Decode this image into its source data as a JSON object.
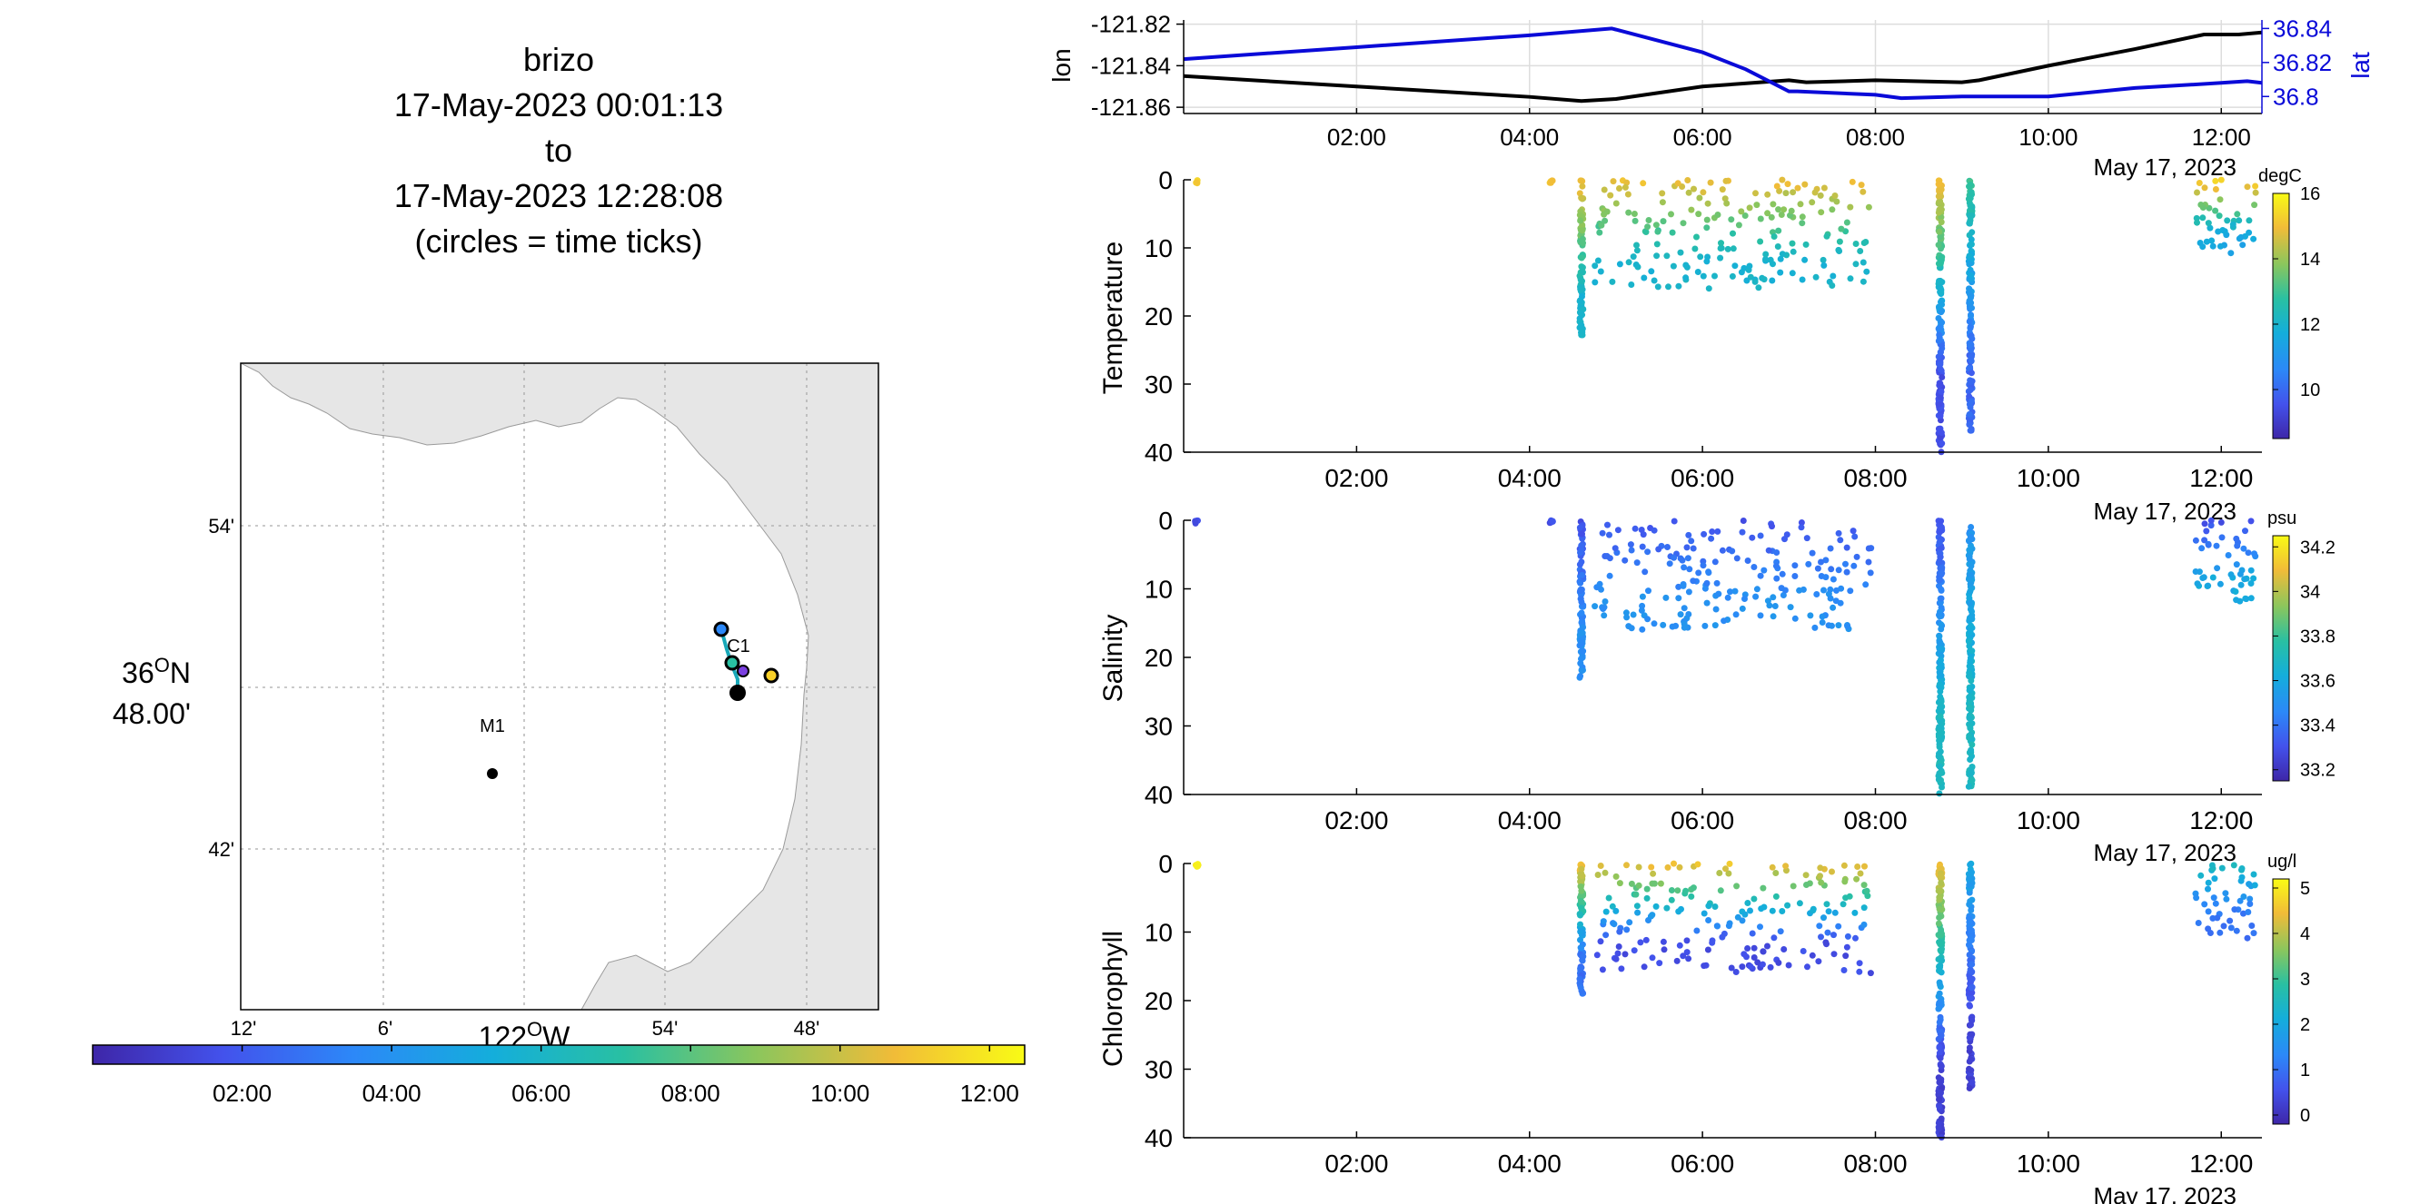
{
  "figure": {
    "title_lines": [
      "brizo",
      "17-May-2023 00:01:13",
      "to",
      "17-May-2023 12:28:08",
      "(circles = time ticks)"
    ]
  },
  "map": {
    "lat_labels": [
      "54'",
      "42'"
    ],
    "lat_center_label_deg": "36",
    "lat_center_label_hem": "N",
    "lat_center_label_min": "48.00'",
    "lon_labels": [
      "12'",
      "6'",
      "54'",
      "48'"
    ],
    "lon_center_label_deg": "122",
    "lon_center_label_hem": "W",
    "stations": [
      {
        "name": "M1"
      },
      {
        "name": "C1"
      }
    ],
    "land_color": "#e6e6e6",
    "track_color": "#18a8b8",
    "time_colorbar_ticks": [
      "02:00",
      "04:00",
      "06:00",
      "08:00",
      "10:00",
      "12:00"
    ]
  },
  "chart_data": [
    {
      "type": "line",
      "title": "",
      "x_ticks": [
        "02:00",
        "04:00",
        "06:00",
        "08:00",
        "10:00",
        "12:00"
      ],
      "x_axis_date": "May 17, 2023",
      "xlim_hours": [
        0.0,
        12.47
      ],
      "left_axis": {
        "label": "lon",
        "ticks": [
          "-121.82",
          "-121.84",
          "-121.86"
        ],
        "ylim": [
          -121.863,
          -121.818
        ]
      },
      "right_axis": {
        "label": "lat",
        "ticks": [
          "36.84",
          "36.82",
          "36.8"
        ],
        "ylim": [
          36.79,
          36.845
        ],
        "color": "#0a0ad8"
      },
      "series": [
        {
          "name": "lon",
          "color": "#000000",
          "axis": "left",
          "x": [
            0.0,
            2.0,
            4.0,
            4.6,
            5.0,
            6.0,
            7.0,
            7.2,
            8.0,
            9.0,
            9.2,
            10.0,
            11.0,
            11.8,
            12.2,
            12.47
          ],
          "y": [
            -121.845,
            -121.85,
            -121.855,
            -121.857,
            -121.856,
            -121.85,
            -121.847,
            -121.848,
            -121.847,
            -121.848,
            -121.847,
            -121.84,
            -121.832,
            -121.825,
            -121.825,
            -121.824
          ]
        },
        {
          "name": "lat",
          "color": "#0a0ad8",
          "axis": "right",
          "x": [
            0.0,
            2.0,
            4.0,
            4.95,
            6.0,
            6.5,
            7.0,
            7.1,
            8.0,
            8.3,
            9.0,
            10.0,
            11.0,
            12.0,
            12.3,
            12.47
          ],
          "y": [
            36.822,
            36.829,
            36.836,
            36.84,
            36.826,
            36.816,
            36.803,
            36.803,
            36.801,
            36.799,
            36.8,
            36.8,
            36.805,
            36.808,
            36.809,
            36.808
          ]
        }
      ]
    },
    {
      "type": "scatter",
      "ylabel": "Temperature",
      "colorbar_unit": "degC",
      "colorbar_ticks": [
        "16",
        "14",
        "12",
        "10"
      ],
      "clim": [
        8.5,
        16.0
      ],
      "ylim": [
        40,
        0
      ],
      "y_ticks": [
        "0",
        "10",
        "20",
        "30",
        "40"
      ],
      "x_ticks": [
        "02:00",
        "04:00",
        "06:00",
        "08:00",
        "10:00",
        "12:00"
      ],
      "x_axis_date": "May 17, 2023",
      "profiles": [
        {
          "t": 0.15,
          "dmin": 0,
          "dmax": 0.5,
          "vsurf": 15.2,
          "vdeep": 15.2
        },
        {
          "t": 4.25,
          "dmin": 0,
          "dmax": 0.5,
          "vsurf": 15.0,
          "vdeep": 15.0
        },
        {
          "t": 4.6,
          "dmin": 0,
          "dmax": 23,
          "vsurf": 15.0,
          "vdeep": 12.0
        },
        {
          "t": 5.3,
          "dmin": 0,
          "dmax": 16,
          "vsurf": 15.0,
          "vdeep": 12.0
        },
        {
          "t": 6.3,
          "dmin": 0,
          "dmax": 16,
          "vsurf": 15.0,
          "vdeep": 12.0
        },
        {
          "t": 7.4,
          "dmin": 0,
          "dmax": 16,
          "vsurf": 15.0,
          "vdeep": 12.0
        },
        {
          "t": 8.75,
          "dmin": 0,
          "dmax": 40,
          "vsurf": 15.0,
          "vdeep": 9.5
        },
        {
          "t": 9.1,
          "dmin": 0,
          "dmax": 37,
          "vsurf": 13.0,
          "vdeep": 10.0
        },
        {
          "t": 12.05,
          "dmin": 0,
          "dmax": 11,
          "vsurf": 15.5,
          "vdeep": 11.5
        }
      ]
    },
    {
      "type": "scatter",
      "ylabel": "Salinity",
      "colorbar_unit": "psu",
      "colorbar_ticks": [
        "34.2",
        "34",
        "33.8",
        "33.6",
        "33.4",
        "33.2"
      ],
      "clim": [
        33.15,
        34.25
      ],
      "ylim": [
        40,
        0
      ],
      "y_ticks": [
        "0",
        "10",
        "20",
        "30",
        "40"
      ],
      "x_ticks": [
        "02:00",
        "04:00",
        "06:00",
        "08:00",
        "10:00",
        "12:00"
      ],
      "x_axis_date": "May 17, 2023",
      "profiles": [
        {
          "t": 0.15,
          "dmin": 0,
          "dmax": 0.5,
          "vsurf": 33.3,
          "vdeep": 33.3
        },
        {
          "t": 4.25,
          "dmin": 0,
          "dmax": 0.5,
          "vsurf": 33.3,
          "vdeep": 33.3
        },
        {
          "t": 4.6,
          "dmin": 0,
          "dmax": 23,
          "vsurf": 33.3,
          "vdeep": 33.5
        },
        {
          "t": 5.3,
          "dmin": 0,
          "dmax": 16,
          "vsurf": 33.3,
          "vdeep": 33.5
        },
        {
          "t": 6.3,
          "dmin": 0,
          "dmax": 16,
          "vsurf": 33.3,
          "vdeep": 33.5
        },
        {
          "t": 7.4,
          "dmin": 0,
          "dmax": 16,
          "vsurf": 33.3,
          "vdeep": 33.5
        },
        {
          "t": 8.75,
          "dmin": 0,
          "dmax": 40,
          "vsurf": 33.3,
          "vdeep": 33.7
        },
        {
          "t": 9.1,
          "dmin": 0,
          "dmax": 39,
          "vsurf": 33.5,
          "vdeep": 33.7
        },
        {
          "t": 12.05,
          "dmin": 0,
          "dmax": 12,
          "vsurf": 33.3,
          "vdeep": 33.6
        }
      ]
    },
    {
      "type": "scatter",
      "ylabel": "Chlorophyll",
      "colorbar_unit": "ug/l",
      "colorbar_ticks": [
        "5",
        "4",
        "3",
        "2",
        "1",
        "0"
      ],
      "clim": [
        -0.2,
        5.2
      ],
      "ylim": [
        40,
        0
      ],
      "y_ticks": [
        "0",
        "10",
        "20",
        "30",
        "40"
      ],
      "x_ticks": [
        "02:00",
        "04:00",
        "06:00",
        "08:00",
        "10:00",
        "12:00"
      ],
      "x_axis_date": "May 17, 2023",
      "profiles": [
        {
          "t": 0.15,
          "dmin": 0,
          "dmax": 0.5,
          "vsurf": 5.0,
          "vdeep": 5.0
        },
        {
          "t": 4.6,
          "dmin": 0,
          "dmax": 19,
          "vsurf": 4.5,
          "vdeep": 1.0
        },
        {
          "t": 5.3,
          "dmin": 0,
          "dmax": 16,
          "vsurf": 4.5,
          "vdeep": 0.5
        },
        {
          "t": 6.3,
          "dmin": 0,
          "dmax": 16,
          "vsurf": 4.5,
          "vdeep": 0.5
        },
        {
          "t": 7.4,
          "dmin": 0,
          "dmax": 16,
          "vsurf": 4.5,
          "vdeep": 0.5
        },
        {
          "t": 8.75,
          "dmin": 0,
          "dmax": 40,
          "vsurf": 4.5,
          "vdeep": 0.3
        },
        {
          "t": 9.1,
          "dmin": 0,
          "dmax": 33,
          "vsurf": 2.0,
          "vdeep": 0.3
        },
        {
          "t": 12.05,
          "dmin": 0,
          "dmax": 11,
          "vsurf": 2.5,
          "vdeep": 1.0
        }
      ]
    }
  ]
}
